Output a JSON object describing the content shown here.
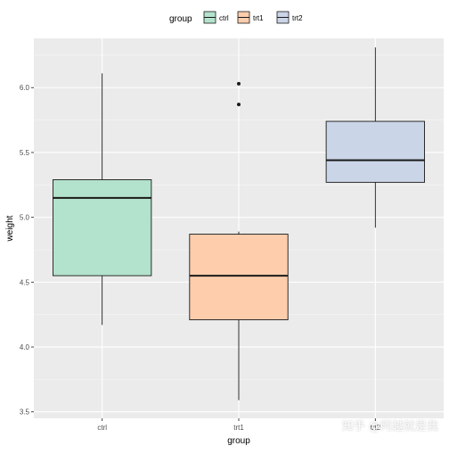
{
  "chart_data": {
    "type": "box",
    "xlabel": "group",
    "ylabel": "weight",
    "ylim": [
      3.45,
      6.38
    ],
    "yticks": [
      3.5,
      4.0,
      4.5,
      5.0,
      5.5,
      6.0
    ],
    "ytick_labels": [
      "3.5",
      "4.0",
      "4.5",
      "5.0",
      "5.5",
      "6.0"
    ],
    "legend": {
      "title": "group",
      "position": "top",
      "entries": [
        "ctrl",
        "trt1",
        "trt2"
      ]
    },
    "grid": true,
    "series": [
      {
        "name": "ctrl",
        "color": "#b3e2cd",
        "whisker_low": 4.17,
        "q1": 4.55,
        "median": 5.15,
        "q3": 5.29,
        "whisker_high": 6.11,
        "outliers": []
      },
      {
        "name": "trt1",
        "color": "#fdcdac",
        "whisker_low": 3.59,
        "q1": 4.21,
        "median": 4.55,
        "q3": 4.87,
        "whisker_high": 4.89,
        "outliers": [
          5.87,
          6.03
        ]
      },
      {
        "name": "trt2",
        "color": "#cbd5e8",
        "whisker_low": 4.92,
        "q1": 5.27,
        "median": 5.44,
        "q3": 5.74,
        "whisker_high": 6.31,
        "outliers": []
      }
    ]
  },
  "watermark": "知乎 @阿越就是我"
}
